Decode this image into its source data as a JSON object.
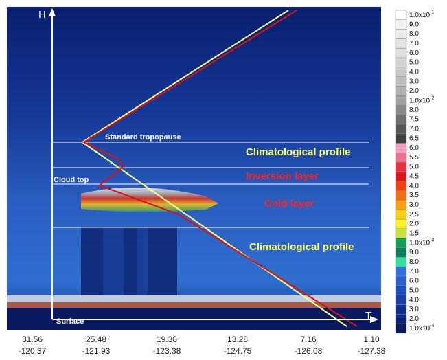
{
  "axes": {
    "y_label": "H",
    "x_label": "T"
  },
  "annotations": {
    "tropopause": "Standard tropopause",
    "climatological_upper": "Climatological profile",
    "inversion": "Inversion layer",
    "cloud_top": "Cloud top",
    "cold_layer": "Cold layer",
    "climatological_lower": "Climatological profile",
    "surface": "Surface"
  },
  "x_labels": [
    [
      "31.56",
      "-120.37"
    ],
    [
      "25.48",
      "-121.93"
    ],
    [
      "19.38",
      "-123.38"
    ],
    [
      "13.28",
      "-124.75"
    ],
    [
      "7.16",
      "-126.08"
    ],
    [
      "1.10",
      "-127.38"
    ]
  ],
  "colorbar": [
    {
      "mantissa": "1.0x10",
      "exponent": "-1"
    },
    "9.0",
    "8.0",
    "7.0",
    "6.0",
    "5.0",
    "4.0",
    "3.0",
    "2.0",
    {
      "mantissa": "1.0x10",
      "exponent": "-2"
    },
    "8.0",
    "7.5",
    "7.0",
    "6.5",
    "6.0",
    "5.5",
    "5.0",
    "4.5",
    "4.0",
    "3.5",
    "3.0",
    "2.5",
    "2.0",
    "1.5",
    {
      "mantissa": "1.0x10",
      "exponent": "-3"
    },
    "9.0",
    "8.0",
    "7.0",
    "6.0",
    "5.0",
    "4.0",
    "3.0",
    "2.0",
    {
      "mantissa": "1.0x10",
      "exponent": "-4"
    }
  ]
}
